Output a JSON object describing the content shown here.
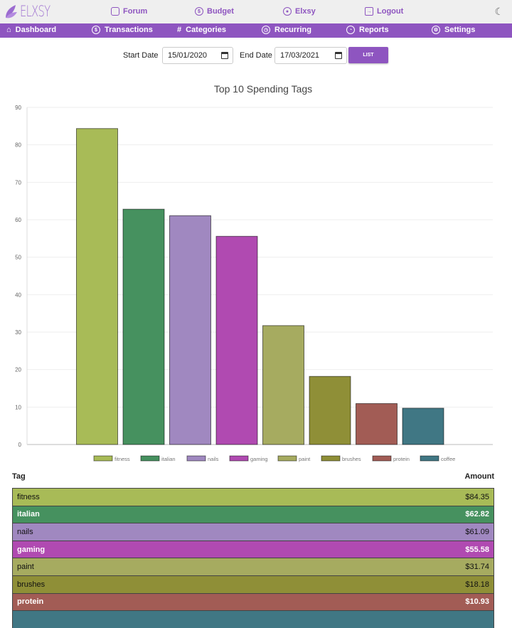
{
  "app": {
    "logo_text": "ELXSY"
  },
  "topnav": [
    {
      "label": "Forum",
      "icon": "chat-icon"
    },
    {
      "label": "Budget",
      "icon": "dollar-icon"
    },
    {
      "label": "Elxsy",
      "icon": "user-icon"
    },
    {
      "label": "Logout",
      "icon": "logout-icon"
    }
  ],
  "mainnav": [
    {
      "label": "Dashboard",
      "icon": "home-icon"
    },
    {
      "label": "Transactions",
      "icon": "dollar-icon"
    },
    {
      "label": "Categories",
      "icon": "hash-icon"
    },
    {
      "label": "Recurring",
      "icon": "clock-icon"
    },
    {
      "label": "Reports",
      "icon": "pie-chart-icon"
    },
    {
      "label": "Settings",
      "icon": "gear-icon"
    }
  ],
  "filters": {
    "start_label": "Start Date",
    "start_value": "15/01/2020",
    "end_label": "End Date",
    "end_value": "17/03/2021",
    "list_label": "LIST"
  },
  "chart_data": {
    "type": "bar",
    "title": "Top 10 Spending Tags",
    "categories": [
      "fitness",
      "italian",
      "nails",
      "gaming",
      "paint",
      "brushes",
      "protein",
      "coffee"
    ],
    "values": [
      84.35,
      62.82,
      61.09,
      55.58,
      31.74,
      18.18,
      10.93,
      9.7
    ],
    "colors": [
      "#a8bb57",
      "#46915f",
      "#a088c0",
      "#b04ab1",
      "#a6ab60",
      "#8f8f37",
      "#a25c55",
      "#407784"
    ],
    "ylim": [
      0,
      90
    ],
    "yticks": [
      0,
      10,
      20,
      30,
      40,
      50,
      60,
      70,
      80,
      90
    ],
    "legend": "bottom",
    "grid": true
  },
  "table": {
    "headers": [
      "Tag",
      "Amount"
    ],
    "rows": [
      {
        "tag": "fitness",
        "amount": "$84.35",
        "color": "#a8bb57",
        "text": "#111"
      },
      {
        "tag": "italian",
        "amount": "$62.82",
        "color": "#46915f",
        "text": "#fff"
      },
      {
        "tag": "nails",
        "amount": "$61.09",
        "color": "#a088c0",
        "text": "#111"
      },
      {
        "tag": "gaming",
        "amount": "$55.58",
        "color": "#b04ab1",
        "text": "#fff"
      },
      {
        "tag": "paint",
        "amount": "$31.74",
        "color": "#a6ab60",
        "text": "#111"
      },
      {
        "tag": "brushes",
        "amount": "$18.18",
        "color": "#8f8f37",
        "text": "#111"
      },
      {
        "tag": "protein",
        "amount": "$10.93",
        "color": "#a25c55",
        "text": "#fff"
      }
    ]
  }
}
